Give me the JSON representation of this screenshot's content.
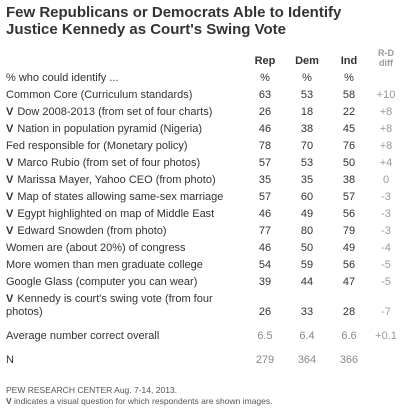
{
  "title_lines": [
    "Few Republicans or Democrats Able to Identify",
    "Justice Kennedy as Court's Swing Vote"
  ],
  "table": {
    "columns": [
      "Rep",
      "Dem",
      "Ind",
      "R-D diff"
    ],
    "units": [
      "%",
      "%",
      "%"
    ],
    "lead": "% who could identify ...",
    "rows": [
      {
        "label": "Common Core (Curriculum standards)",
        "cells": [
          "63",
          "53",
          "58",
          "+10"
        ]
      },
      {
        "marker": "V",
        "label": "Dow 2008-2013 (from set of four charts)",
        "cells": [
          "26",
          "18",
          "22",
          "+8"
        ]
      },
      {
        "marker": "V",
        "label": "Nation in population pyramid (Nigeria)",
        "cells": [
          "46",
          "38",
          "45",
          "+8"
        ]
      },
      {
        "label": "Fed responsible for (Monetary policy)",
        "cells": [
          "78",
          "70",
          "76",
          "+8"
        ]
      },
      {
        "marker": "V",
        "label": "Marco Rubio (from set of four photos)",
        "cells": [
          "57",
          "53",
          "50",
          "+4"
        ]
      },
      {
        "marker": "V",
        "label": "Marissa Mayer, Yahoo CEO (from photo)",
        "cells": [
          "35",
          "35",
          "38",
          "0"
        ]
      },
      {
        "marker": "V",
        "label": "Map of states allowing same-sex marriage",
        "cells": [
          "57",
          "60",
          "57",
          "-3"
        ]
      },
      {
        "marker": "V",
        "label": "Egypt highlighted on map of  Middle East",
        "cells": [
          "46",
          "49",
          "56",
          "-3"
        ]
      },
      {
        "marker": "V",
        "label": "Edward Snowden (from photo)",
        "cells": [
          "77",
          "80",
          "79",
          "-3"
        ]
      },
      {
        "label": "Women are (about 20%) of congress",
        "cells": [
          "46",
          "50",
          "49",
          "-4"
        ]
      },
      {
        "label": "More women than men graduate college",
        "cells": [
          "54",
          "59",
          "56",
          "-5"
        ]
      },
      {
        "label": "Google Glass (computer you can wear)",
        "cells": [
          "39",
          "44",
          "47",
          "-5"
        ]
      },
      {
        "marker": "V",
        "label": "Kennedy is court's swing vote (from four photos)",
        "cells": [
          "26",
          "33",
          "28",
          "-7"
        ]
      }
    ],
    "summary": [
      {
        "label": "Average number correct overall",
        "cells": [
          "6.5",
          "6.4",
          "6.6",
          "+0.1"
        ]
      },
      {
        "label": "N",
        "cells": [
          "279",
          "364",
          "366"
        ]
      }
    ]
  },
  "footer": {
    "source": "PEW RESEARCH CENTER Aug. 7-14, 2013.",
    "note_marker": "V",
    "note": "indicates a visual question for which respondents are shown images."
  }
}
